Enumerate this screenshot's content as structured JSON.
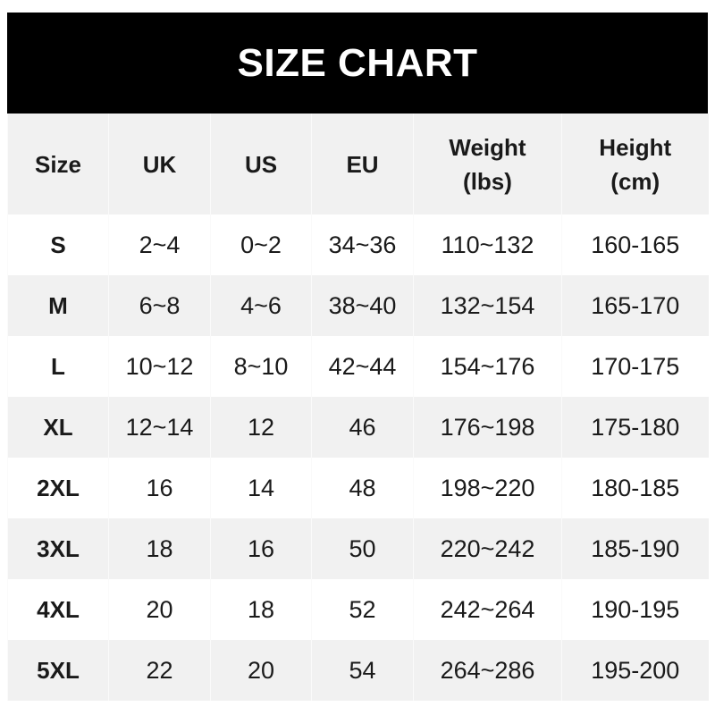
{
  "title": "SIZE CHART",
  "headers": [
    {
      "line1": "Size",
      "line2": ""
    },
    {
      "line1": "UK",
      "line2": ""
    },
    {
      "line1": "US",
      "line2": ""
    },
    {
      "line1": "EU",
      "line2": ""
    },
    {
      "line1": "Weight",
      "line2": "(lbs)"
    },
    {
      "line1": "Height",
      "line2": "(cm)"
    }
  ],
  "rows": [
    [
      "S",
      "2~4",
      "0~2",
      "34~36",
      "110~132",
      "160-165"
    ],
    [
      "M",
      "6~8",
      "4~6",
      "38~40",
      "132~154",
      "165-170"
    ],
    [
      "L",
      "10~12",
      "8~10",
      "42~44",
      "154~176",
      "170-175"
    ],
    [
      "XL",
      "12~14",
      "12",
      "46",
      "176~198",
      "175-180"
    ],
    [
      "2XL",
      "16",
      "14",
      "48",
      "198~220",
      "180-185"
    ],
    [
      "3XL",
      "18",
      "16",
      "50",
      "220~242",
      "185-190"
    ],
    [
      "4XL",
      "20",
      "18",
      "52",
      "242~264",
      "190-195"
    ],
    [
      "5XL",
      "22",
      "20",
      "54",
      "264~286",
      "195-200"
    ]
  ],
  "colors": {
    "title_bg": "#000000",
    "title_text": "#ffffff",
    "stripe": "#f1f1f1"
  }
}
